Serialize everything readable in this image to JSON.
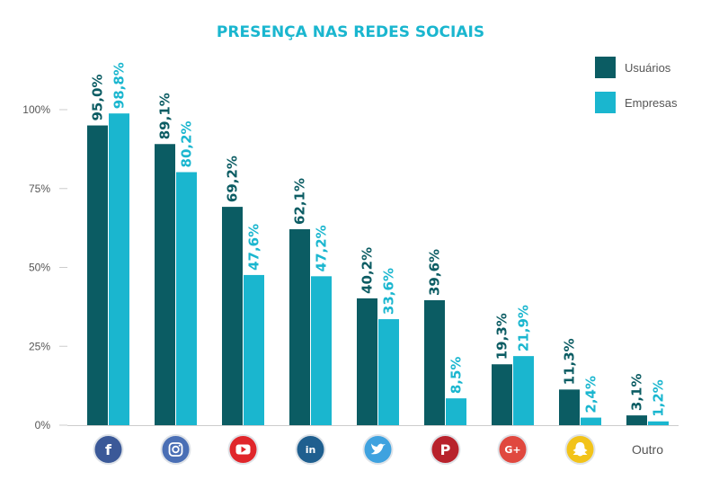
{
  "chart_data": {
    "type": "bar",
    "title": "PRESENÇA NAS REDES SOCIAIS",
    "categories": [
      "facebook",
      "instagram",
      "youtube",
      "linkedin",
      "twitter",
      "pinterest",
      "google-plus",
      "snapchat",
      "Outro"
    ],
    "category_text": {
      "Outro": "Outro"
    },
    "series": [
      {
        "name": "Usuários",
        "color": "#0b5c63",
        "values": [
          95.0,
          89.1,
          69.2,
          62.1,
          40.2,
          39.6,
          19.3,
          11.3,
          3.1
        ],
        "labels": [
          "95,0%",
          "89,1%",
          "69,2%",
          "62,1%",
          "40,2%",
          "39,6%",
          "19,3%",
          "11,3%",
          "3,1%"
        ]
      },
      {
        "name": "Empresas",
        "color": "#1ab6cf",
        "values": [
          98.8,
          80.2,
          47.6,
          47.2,
          33.6,
          8.5,
          21.9,
          2.4,
          1.2
        ],
        "labels": [
          "98,8%",
          "80,2%",
          "47,6%",
          "47,2%",
          "33,6%",
          "8,5%",
          "21,9%",
          "2,4%",
          "1,2%"
        ]
      }
    ],
    "yticks": [
      0,
      25,
      50,
      75,
      100
    ],
    "ytick_labels": [
      "0%",
      "25%",
      "50%",
      "75%",
      "100%"
    ],
    "ylim": [
      0,
      100
    ],
    "legend": "top-right",
    "grid": false,
    "colors": {
      "title": "#1ab6cf",
      "axis": "#cccccc",
      "tick_text": "#555555"
    }
  },
  "icons": [
    {
      "name": "facebook-icon",
      "color": "#3b5998",
      "glyph": "f"
    },
    {
      "name": "instagram-icon",
      "color": "#4a6fb5",
      "glyph": ""
    },
    {
      "name": "youtube-icon",
      "color": "#e0262b",
      "glyph": ""
    },
    {
      "name": "linkedin-icon",
      "color": "#1f5f8f",
      "glyph": "in"
    },
    {
      "name": "twitter-icon",
      "color": "#3fa2df",
      "glyph": ""
    },
    {
      "name": "pinterest-icon",
      "color": "#b8222c",
      "glyph": "P"
    },
    {
      "name": "google-plus-icon",
      "color": "#e0483f",
      "glyph": "G+"
    },
    {
      "name": "snapchat-icon",
      "color": "#f2c31a",
      "glyph": ""
    }
  ]
}
